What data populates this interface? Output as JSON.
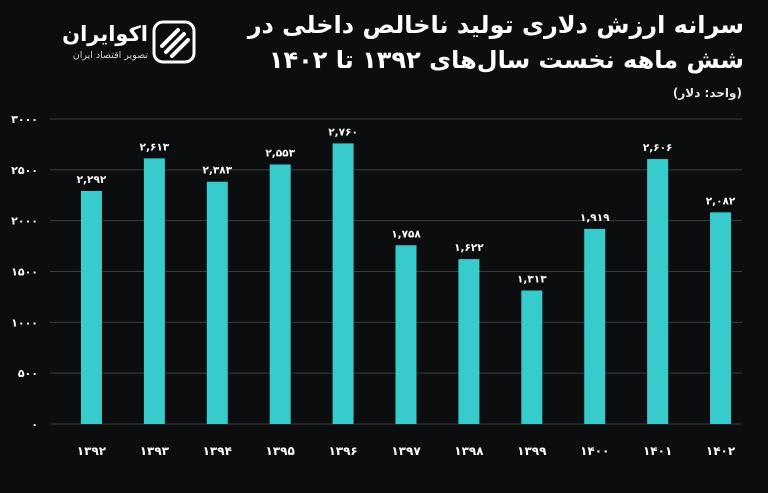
{
  "brand": {
    "name": "اکوایران",
    "tagline": "تصویر اقتصاد ایران",
    "logo_icon": "ekoiran-logo-icon"
  },
  "colors": {
    "background": "#0b0d0f",
    "bar": "#37cbcb",
    "grid": "#3a3d40",
    "text": "#ffffff"
  },
  "chart_data": {
    "type": "bar",
    "title": "سرانه ارزش دلاری تولید ناخالص داخلی در شش ماهه نخست سال‌های ۱۳۹۲ تا ۱۴۰۲",
    "subtitle": "(واحد: دلار)",
    "xlabel": "",
    "ylabel": "",
    "categories": [
      "۱۳۹۲",
      "۱۳۹۳",
      "۱۳۹۴",
      "۱۳۹۵",
      "۱۳۹۶",
      "۱۳۹۷",
      "۱۳۹۸",
      "۱۳۹۹",
      "۱۴۰۰",
      "۱۴۰۱",
      "۱۴۰۲"
    ],
    "values": [
      2292,
      2613,
      2383,
      2553,
      2760,
      1758,
      1622,
      1313,
      1919,
      2606,
      2082
    ],
    "value_labels": [
      "۲,۲۹۲",
      "۲,۶۱۳",
      "۲,۳۸۳",
      "۲,۵۵۳",
      "۲,۷۶۰",
      "۱,۷۵۸",
      "۱,۶۲۲",
      "۱,۳۱۳",
      "۱,۹۱۹",
      "۲,۶۰۶",
      "۲,۰۸۲"
    ],
    "y_ticks": [
      0,
      500,
      1000,
      1500,
      2000,
      2500,
      3000
    ],
    "y_tick_labels": [
      "۰",
      "۵۰۰",
      "۱۰۰۰",
      "۱۵۰۰",
      "۲۰۰۰",
      "۲۵۰۰",
      "۳۰۰۰"
    ],
    "ylim": [
      0,
      3000
    ],
    "grid": true,
    "legend": "none"
  }
}
